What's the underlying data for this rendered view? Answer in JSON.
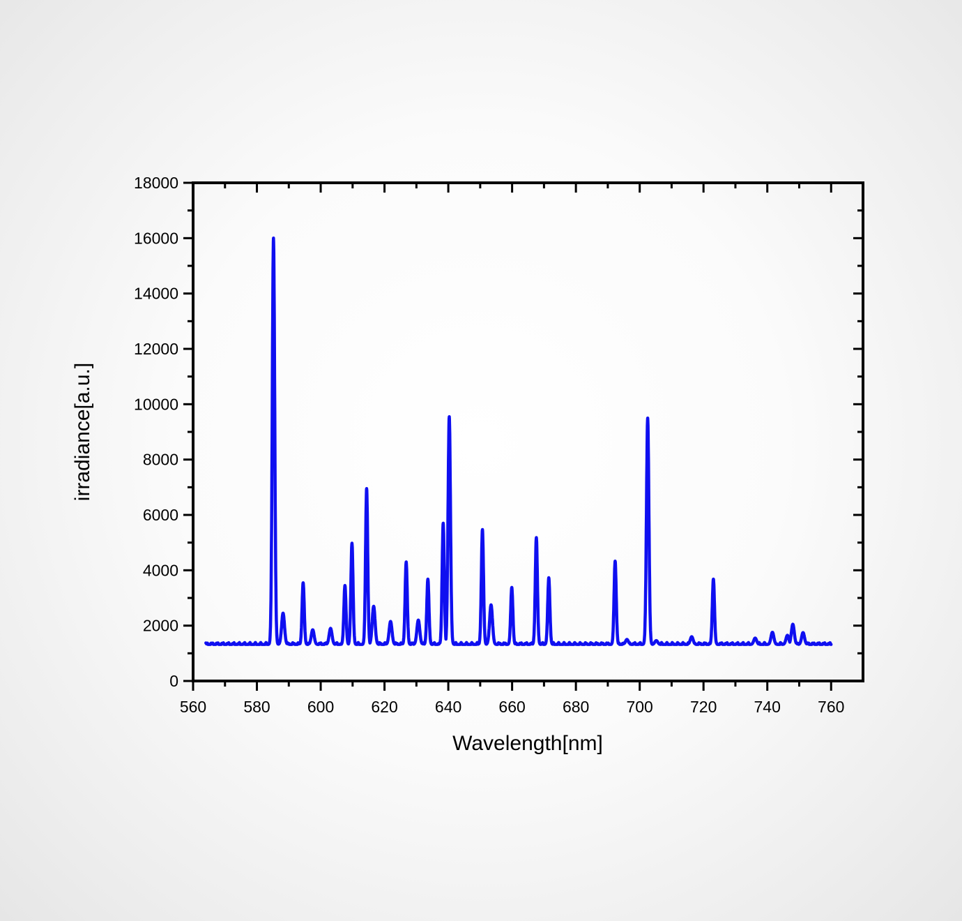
{
  "chart_data": {
    "type": "line",
    "title": "",
    "xlabel": "Wavelength[nm]",
    "ylabel": "irradiance[a.u.]",
    "xlim": [
      560,
      770
    ],
    "ylim": [
      0,
      18000
    ],
    "xticks": [
      560,
      580,
      600,
      620,
      640,
      660,
      680,
      700,
      720,
      740,
      760
    ],
    "yticks": [
      0,
      2000,
      4000,
      6000,
      8000,
      10000,
      12000,
      14000,
      16000,
      18000
    ],
    "grid": false,
    "legend": "none",
    "baseline": 1320,
    "x_range": [
      564,
      760
    ],
    "peaks": [
      {
        "x": 585.2,
        "y": 16000
      },
      {
        "x": 588.2,
        "y": 2450
      },
      {
        "x": 594.5,
        "y": 3550
      },
      {
        "x": 597.5,
        "y": 1850
      },
      {
        "x": 603.1,
        "y": 1900
      },
      {
        "x": 607.6,
        "y": 3450
      },
      {
        "x": 609.8,
        "y": 4980
      },
      {
        "x": 614.4,
        "y": 6950
      },
      {
        "x": 616.6,
        "y": 2700
      },
      {
        "x": 621.9,
        "y": 2150
      },
      {
        "x": 626.8,
        "y": 4300
      },
      {
        "x": 630.6,
        "y": 2200
      },
      {
        "x": 633.6,
        "y": 3680
      },
      {
        "x": 638.4,
        "y": 5700
      },
      {
        "x": 640.3,
        "y": 9550
      },
      {
        "x": 650.7,
        "y": 5470
      },
      {
        "x": 653.4,
        "y": 2750
      },
      {
        "x": 659.9,
        "y": 3380
      },
      {
        "x": 667.6,
        "y": 5180
      },
      {
        "x": 671.5,
        "y": 3730
      },
      {
        "x": 692.3,
        "y": 4330
      },
      {
        "x": 696.0,
        "y": 1500
      },
      {
        "x": 702.5,
        "y": 9500
      },
      {
        "x": 705.2,
        "y": 1460
      },
      {
        "x": 716.3,
        "y": 1600
      },
      {
        "x": 723.1,
        "y": 3680
      },
      {
        "x": 736.2,
        "y": 1550
      },
      {
        "x": 741.6,
        "y": 1760
      },
      {
        "x": 746.3,
        "y": 1650
      },
      {
        "x": 748.0,
        "y": 2050
      },
      {
        "x": 751.2,
        "y": 1750
      }
    ],
    "color": "#0f0ff0"
  }
}
